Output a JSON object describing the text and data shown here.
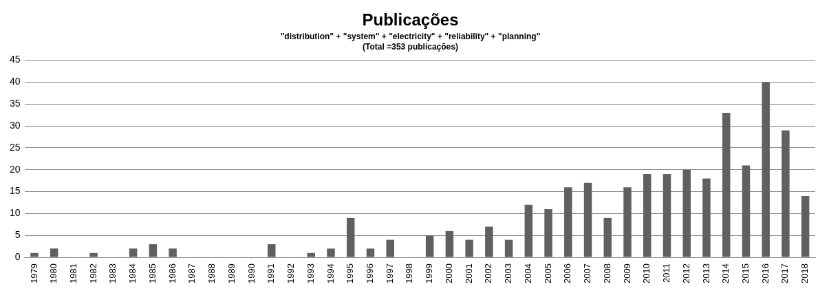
{
  "chart_data": {
    "type": "bar",
    "title": "Publicações",
    "subtitle": "\"distribution\" + \"system\" + \"electricity\" + \"reliability\" + \"planning\"",
    "annotations": [
      "(Total =353 publicações)"
    ],
    "categories": [
      "1979",
      "1980",
      "1981",
      "1982",
      "1983",
      "1984",
      "1985",
      "1986",
      "1987",
      "1988",
      "1989",
      "1990",
      "1991",
      "1992",
      "1993",
      "1994",
      "1995",
      "1996",
      "1997",
      "1998",
      "1999",
      "2000",
      "2001",
      "2002",
      "2003",
      "2004",
      "2005",
      "2006",
      "2007",
      "2008",
      "2009",
      "2010",
      "2011",
      "2012",
      "2013",
      "2014",
      "2015",
      "2016",
      "2017",
      "2018"
    ],
    "values": [
      1,
      2,
      0,
      1,
      0,
      2,
      3,
      2,
      0,
      0,
      0,
      0,
      3,
      0,
      1,
      2,
      9,
      2,
      4,
      0,
      5,
      6,
      4,
      7,
      4,
      12,
      11,
      16,
      17,
      9,
      16,
      19,
      19,
      20,
      18,
      33,
      21,
      40,
      29,
      14
    ],
    "color": "#606060",
    "ylim": [
      0,
      45
    ],
    "yticks": [
      0,
      5,
      10,
      15,
      20,
      25,
      30,
      35,
      40,
      45
    ],
    "grid": "y",
    "legend": false
  }
}
